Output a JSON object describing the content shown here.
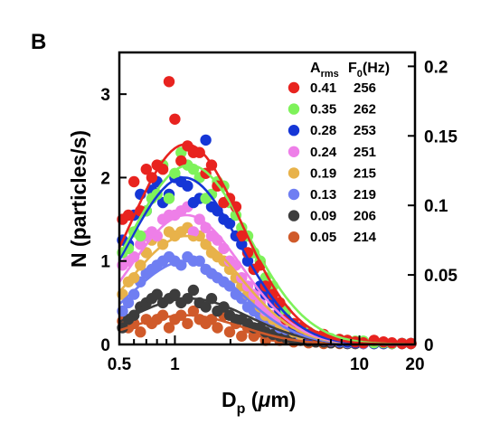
{
  "chart_data": {
    "type": "scatter",
    "panel_label": "B",
    "x_scale": "log",
    "xlim": [
      0.5,
      20
    ],
    "ylim_left": [
      0,
      3.5
    ],
    "ylim_right": [
      0,
      0.21
    ],
    "xticks": [
      {
        "v": 0.5,
        "t": "0.5"
      },
      {
        "v": 1,
        "t": "1"
      },
      {
        "v": 10,
        "t": "10"
      },
      {
        "v": 20,
        "t": "20"
      }
    ],
    "yticks_left": [
      {
        "v": 0,
        "t": "0"
      },
      {
        "v": 1,
        "t": "1"
      },
      {
        "v": 2,
        "t": "2"
      },
      {
        "v": 3,
        "t": "3"
      }
    ],
    "yticks_right": [
      {
        "v": 0,
        "t": "0"
      },
      {
        "v": 0.05,
        "t": "0.05"
      },
      {
        "v": 0.1,
        "t": "0.1"
      },
      {
        "v": 0.15,
        "t": "0.15"
      },
      {
        "v": 0.2,
        "t": "0.2"
      }
    ],
    "xlabel": {
      "main": "D",
      "sub": "p",
      "unit_open": " (",
      "mu": "μ",
      "unit_rest": "m)"
    },
    "ylabel": "N (particles/s)",
    "legend": {
      "placement": "top-right",
      "header": {
        "a": "A",
        "a_sub": "rms",
        "f": "F",
        "f_sub": "0",
        "f_unit": "(Hz)"
      }
    },
    "series": [
      {
        "arms": "0.41",
        "f0": "256",
        "color": "#e8231f",
        "amplitude": 2.4,
        "peak": 1.15,
        "width": 0.3,
        "x": [
          0.52,
          0.56,
          0.6,
          0.65,
          0.7,
          0.75,
          0.8,
          0.86,
          0.93,
          1.0,
          1.08,
          1.17,
          1.26,
          1.36,
          1.47,
          1.58,
          1.7,
          1.84,
          1.98,
          2.14,
          2.3,
          2.48,
          2.68,
          2.9,
          3.1,
          3.4,
          3.7,
          4.0,
          4.4,
          4.8,
          5.3,
          5.8,
          6.4,
          7.0,
          7.8,
          8.6,
          9.5,
          10.5,
          12,
          13.5,
          15,
          17,
          19
        ],
        "y": [
          1.5,
          1.55,
          1.95,
          1.6,
          2.1,
          2.0,
          2.15,
          2.1,
          3.15,
          2.7,
          2.2,
          2.38,
          2.3,
          2.3,
          2.05,
          2.15,
          1.9,
          1.7,
          1.75,
          1.65,
          1.3,
          1.1,
          0.9,
          0.95,
          0.7,
          0.6,
          0.5,
          0.3,
          0.25,
          0.2,
          0.12,
          0.1,
          0.12,
          0.05,
          0.06,
          0.05,
          0.03,
          0.02,
          0.05,
          0.03,
          0.02,
          0.01,
          0.0
        ]
      },
      {
        "arms": "0.35",
        "f0": "262",
        "color": "#7ef25a",
        "amplitude": 2.15,
        "peak": 1.2,
        "width": 0.32,
        "x": [
          0.52,
          0.56,
          0.6,
          0.65,
          0.7,
          0.75,
          0.8,
          0.86,
          0.93,
          1.0,
          1.08,
          1.17,
          1.26,
          1.36,
          1.47,
          1.58,
          1.7,
          1.84,
          1.98,
          2.14,
          2.3,
          2.48,
          2.68,
          2.9,
          3.1,
          3.4,
          3.7,
          4.0,
          4.4,
          4.8,
          5.3,
          5.8,
          6.4,
          7.0,
          7.8,
          8.6,
          9.5,
          10.5,
          12,
          13.5,
          15,
          17,
          19
        ],
        "y": [
          1.1,
          1.15,
          1.35,
          1.3,
          1.6,
          1.75,
          1.8,
          2.15,
          1.75,
          2.05,
          2.3,
          2.15,
          2.1,
          2.0,
          1.75,
          1.8,
          1.95,
          1.9,
          1.7,
          1.55,
          1.4,
          1.3,
          1.1,
          1.0,
          0.8,
          0.7,
          0.5,
          0.4,
          0.25,
          0.2,
          0.15,
          0.1,
          0.08,
          0.07,
          0.06,
          0.05,
          0.04,
          0.04,
          0.02,
          0.02,
          0.01,
          0.01,
          0.0
        ]
      },
      {
        "arms": "0.28",
        "f0": "253",
        "color": "#1536d6",
        "amplitude": 2.0,
        "peak": 1.12,
        "width": 0.3,
        "x": [
          0.52,
          0.56,
          0.6,
          0.65,
          0.7,
          0.75,
          0.8,
          0.86,
          0.93,
          1.0,
          1.08,
          1.17,
          1.26,
          1.36,
          1.47,
          1.58,
          1.7,
          1.84,
          1.98,
          2.14,
          2.3,
          2.48,
          2.68,
          2.9,
          3.1,
          3.4,
          3.7,
          4.0,
          4.4,
          4.8,
          5.3,
          5.8,
          6.4,
          7.0,
          7.8,
          8.6,
          9.5,
          10.5,
          12,
          13.5,
          15,
          17,
          19
        ],
        "y": [
          1.25,
          1.2,
          1.55,
          1.8,
          1.6,
          1.85,
          1.95,
          1.7,
          1.8,
          2.0,
          1.95,
          1.9,
          1.7,
          1.75,
          2.45,
          1.65,
          1.6,
          1.5,
          1.45,
          1.3,
          1.2,
          1.0,
          0.9,
          0.7,
          0.6,
          0.5,
          0.4,
          0.3,
          0.2,
          0.15,
          0.1,
          0.08,
          0.06,
          0.05,
          0.04,
          0.03,
          0.02,
          0.02,
          0.01,
          0.01,
          0.0,
          0.0,
          0.0
        ]
      },
      {
        "arms": "0.24",
        "f0": "251",
        "color": "#ee7fe8",
        "amplitude": 1.55,
        "peak": 1.15,
        "width": 0.3,
        "x": [
          0.52,
          0.56,
          0.6,
          0.65,
          0.7,
          0.75,
          0.8,
          0.86,
          0.93,
          1.0,
          1.08,
          1.17,
          1.26,
          1.36,
          1.47,
          1.58,
          1.7,
          1.84,
          1.98,
          2.14,
          2.3,
          2.48,
          2.68,
          2.9,
          3.1,
          3.4,
          3.7,
          4.0,
          4.4,
          4.8,
          5.3,
          5.8,
          6.4,
          7.0,
          7.8,
          8.6,
          9.5,
          10.5,
          12,
          13.5,
          15,
          17,
          19
        ],
        "y": [
          0.95,
          1.0,
          1.05,
          1.2,
          1.3,
          1.35,
          1.3,
          1.5,
          1.55,
          1.55,
          1.6,
          1.65,
          1.35,
          1.5,
          1.4,
          1.3,
          1.25,
          1.15,
          1.0,
          0.95,
          0.8,
          0.7,
          0.6,
          0.5,
          0.4,
          0.35,
          0.3,
          0.25,
          0.2,
          0.15,
          0.12,
          0.1,
          0.08,
          0.06,
          0.05,
          0.04,
          0.03,
          0.02,
          0.01,
          0.01,
          0.01,
          0.0,
          0.0
        ]
      },
      {
        "arms": "0.19",
        "f0": "215",
        "color": "#e8b24a",
        "amplitude": 1.3,
        "peak": 1.15,
        "width": 0.3,
        "x": [
          0.52,
          0.56,
          0.6,
          0.65,
          0.7,
          0.75,
          0.8,
          0.86,
          0.93,
          1.0,
          1.08,
          1.17,
          1.26,
          1.36,
          1.47,
          1.58,
          1.7,
          1.84,
          1.98,
          2.14,
          2.3,
          2.48,
          2.68,
          2.9,
          3.1,
          3.4,
          3.7,
          4.0,
          4.4,
          4.8,
          5.3,
          5.8,
          6.4,
          7.0,
          7.8,
          8.6,
          9.5,
          10.5,
          12,
          13.5,
          15,
          17,
          19
        ],
        "y": [
          0.6,
          0.75,
          0.8,
          0.95,
          1.1,
          1.25,
          1.3,
          1.2,
          1.35,
          1.3,
          1.35,
          1.4,
          1.3,
          1.3,
          1.2,
          1.1,
          1.05,
          1.0,
          0.9,
          0.8,
          0.7,
          0.6,
          0.55,
          0.45,
          0.35,
          0.3,
          0.25,
          0.2,
          0.15,
          0.12,
          0.1,
          0.08,
          0.06,
          0.05,
          0.04,
          0.03,
          0.02,
          0.02,
          0.01,
          0.01,
          0.0,
          0.0,
          0.0
        ]
      },
      {
        "arms": "0.13",
        "f0": "219",
        "color": "#6f7ef2",
        "amplitude": 1.0,
        "peak": 1.15,
        "width": 0.3,
        "x": [
          0.52,
          0.56,
          0.6,
          0.65,
          0.7,
          0.75,
          0.8,
          0.86,
          0.93,
          1.0,
          1.08,
          1.17,
          1.26,
          1.36,
          1.47,
          1.58,
          1.7,
          1.84,
          1.98,
          2.14,
          2.3,
          2.48,
          2.68,
          2.9,
          3.1,
          3.4,
          3.7,
          4.0,
          4.4,
          4.8,
          5.3,
          5.8,
          6.4,
          7.0,
          7.8,
          8.6,
          9.5,
          10.5,
          12,
          13.5,
          15,
          17,
          19
        ],
        "y": [
          0.4,
          0.5,
          0.6,
          0.75,
          0.85,
          0.9,
          0.95,
          1.0,
          1.05,
          1.0,
          0.95,
          1.05,
          1.0,
          1.0,
          0.9,
          0.85,
          0.8,
          0.75,
          0.7,
          0.6,
          0.55,
          0.45,
          0.4,
          0.35,
          0.3,
          0.25,
          0.2,
          0.18,
          0.15,
          0.1,
          0.08,
          0.06,
          0.05,
          0.04,
          0.03,
          0.02,
          0.02,
          0.01,
          0.01,
          0.01,
          0.0,
          0.0,
          0.0
        ]
      },
      {
        "arms": "0.09",
        "f0": "206",
        "color": "#3c3c3c",
        "amplitude": 0.55,
        "peak": 1.2,
        "width": 0.32,
        "x": [
          0.52,
          0.56,
          0.6,
          0.65,
          0.7,
          0.75,
          0.8,
          0.86,
          0.93,
          1.0,
          1.08,
          1.17,
          1.26,
          1.36,
          1.47,
          1.58,
          1.7,
          1.84,
          1.98,
          2.14,
          2.3,
          2.48,
          2.68,
          2.9,
          3.1,
          3.4,
          3.7,
          4.0,
          4.4,
          4.8,
          5.3,
          5.8,
          6.4,
          7.0,
          7.8,
          8.6,
          9.5,
          10.5,
          12,
          13.5,
          15,
          17,
          19
        ],
        "y": [
          0.2,
          0.3,
          0.35,
          0.45,
          0.5,
          0.55,
          0.6,
          0.5,
          0.55,
          0.6,
          0.5,
          0.55,
          0.65,
          0.5,
          0.45,
          0.55,
          0.4,
          0.45,
          0.35,
          0.3,
          0.3,
          0.25,
          0.2,
          0.2,
          0.15,
          0.12,
          0.1,
          0.08,
          0.06,
          0.05,
          0.04,
          0.03,
          0.03,
          0.02,
          0.02,
          0.01,
          0.01,
          0.01,
          0.0,
          0.0,
          0.0,
          0.0,
          0.0
        ]
      },
      {
        "arms": "0.05",
        "f0": "214",
        "color": "#d05a2a",
        "amplitude": 0.35,
        "peak": 1.15,
        "width": 0.3,
        "x": [
          0.52,
          0.56,
          0.6,
          0.65,
          0.7,
          0.75,
          0.8,
          0.86,
          0.93,
          1.0,
          1.08,
          1.17,
          1.26,
          1.36,
          1.47,
          1.58,
          1.7,
          1.84,
          1.98,
          2.14,
          2.3,
          2.48,
          2.68,
          2.9,
          3.1,
          3.4,
          3.7,
          4.0,
          4.4,
          4.8,
          5.3,
          5.8,
          6.4,
          7.0,
          7.8,
          8.6,
          9.5,
          10.5,
          12,
          13.5,
          15,
          17,
          19
        ],
        "y": [
          0.28,
          0.2,
          0.25,
          0.15,
          0.3,
          0.25,
          0.3,
          0.35,
          0.2,
          0.3,
          0.35,
          0.25,
          0.4,
          0.3,
          0.25,
          0.3,
          0.2,
          0.35,
          0.15,
          0.25,
          0.1,
          0.2,
          0.1,
          0.15,
          0.05,
          0.1,
          0.05,
          0.08,
          0.03,
          0.05,
          0.02,
          0.03,
          0.01,
          0.02,
          0.01,
          0.01,
          0.0,
          0.0,
          0.0,
          0.0,
          0.0,
          0.0,
          0.0
        ]
      }
    ]
  }
}
